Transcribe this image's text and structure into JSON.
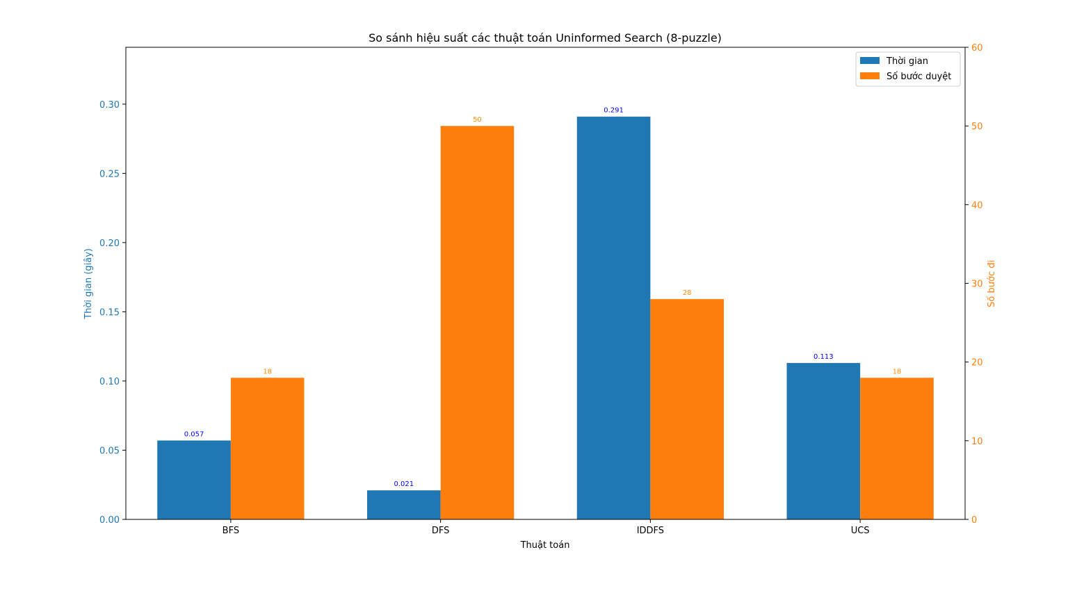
{
  "chart_data": {
    "type": "bar",
    "title": "So sánh hiệu suất các thuật toán Uninformed Search (8-puzzle)",
    "xlabel": "Thuật toán",
    "ylabel_left": "Thời gian (giây)",
    "ylabel_right": "Số bước đi",
    "categories": [
      "BFS",
      "DFS",
      "IDDFS",
      "UCS"
    ],
    "series": [
      {
        "name": "Thời gian",
        "axis": "left",
        "color": "#1f77b4",
        "label_color": "#0000ff",
        "values": [
          0.057,
          0.021,
          0.291,
          0.113
        ],
        "labels": [
          "0.057",
          "0.021",
          "0.291",
          "0.113"
        ]
      },
      {
        "name": "Số bước duyệt",
        "axis": "right",
        "color": "#ff7f0e",
        "label_color": "#ff8c00",
        "values": [
          18,
          50,
          28,
          18
        ],
        "labels": [
          "18",
          "50",
          "28",
          "18"
        ]
      }
    ],
    "ylim_left": [
      0,
      0.3411
    ],
    "ylim_right": [
      0,
      60
    ],
    "yticks_left": [
      "0.00",
      "0.05",
      "0.10",
      "0.15",
      "0.20",
      "0.25",
      "0.30"
    ],
    "yticks_left_values": [
      0,
      0.05,
      0.1,
      0.15,
      0.2,
      0.25,
      0.3
    ],
    "yticks_right": [
      "0",
      "10",
      "20",
      "30",
      "40",
      "50",
      "60"
    ],
    "yticks_right_values": [
      0,
      10,
      20,
      30,
      40,
      50,
      60
    ],
    "left_axis_color": "#1f77b4",
    "right_axis_color": "#ff7f0e",
    "grid": false,
    "legend_position": "top-right"
  }
}
